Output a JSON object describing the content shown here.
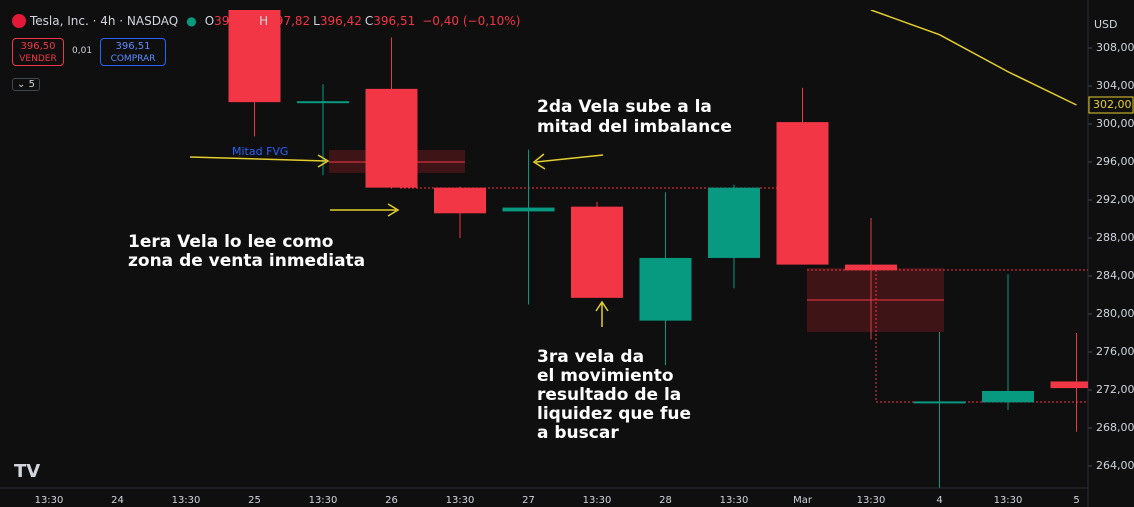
{
  "header": {
    "symbol": "Tesla, Inc. · 4h · NASDAQ",
    "ohlc": [
      {
        "key": "O",
        "value": "396,92"
      },
      {
        "key": "H",
        "value": "397,82"
      },
      {
        "key": "L",
        "value": "396,42"
      },
      {
        "key": "C",
        "value": "396,51"
      }
    ],
    "change": "−0,40 (−0,10%)",
    "sell": {
      "price": "396,50",
      "label": "VENDER"
    },
    "spread": "0,01",
    "buy": {
      "price": "396,51",
      "label": "COMPRAR"
    },
    "lots": "5",
    "currency": "USD"
  },
  "chart_data": {
    "type": "candlestick",
    "categories": [
      "13:30",
      "24",
      "13:30",
      "25",
      "13:30",
      "26",
      "13:30",
      "27",
      "13:30",
      "28",
      "13:30",
      "Mar",
      "13:30",
      "4",
      "13:30",
      "5"
    ],
    "open": [
      null,
      null,
      null,
      312,
      302.3,
      303.7,
      293.3,
      290.8,
      291.3,
      279.3,
      285.9,
      300.2,
      285.2,
      270.6,
      270.7,
      272.9
    ],
    "high": [
      null,
      null,
      null,
      314,
      304.2,
      309.1,
      293.4,
      297.3,
      291.8,
      292.8,
      293.6,
      303.8,
      290.1,
      278.1,
      284.2,
      278
    ],
    "low": [
      null,
      null,
      null,
      298.7,
      294.6,
      293.2,
      288,
      281,
      281.7,
      274.6,
      282.7,
      285.2,
      277.3,
      261.7,
      269.9,
      267.6
    ],
    "close": [
      null,
      null,
      null,
      302.3,
      302.4,
      293.3,
      290.6,
      291.2,
      281.7,
      285.9,
      293.3,
      285.2,
      284.6,
      270.8,
      271.9,
      272.2
    ],
    "up_color": "#089981",
    "down_color": "#f23645",
    "ma": {
      "color": "#e5cf2d",
      "values": [
        null,
        null,
        null,
        null,
        null,
        null,
        null,
        null,
        null,
        null,
        null,
        null,
        312,
        309.4,
        305.5,
        302
      ],
      "value_labels": [
        null,
        null,
        null,
        null,
        null,
        null,
        null,
        null,
        null,
        null,
        null,
        null,
        null,
        null,
        null,
        "302,00"
      ]
    },
    "ylim": [
      262,
      309
    ],
    "yticks": [
      {
        "value": 264,
        "label": "264,00"
      },
      {
        "value": 268,
        "label": "268,00"
      },
      {
        "value": 272,
        "label": "272,00"
      },
      {
        "value": 276,
        "label": "276,00"
      },
      {
        "value": 280,
        "label": "280,00"
      },
      {
        "value": 284,
        "label": "284,00"
      },
      {
        "value": 288,
        "label": "288,00"
      },
      {
        "value": 292,
        "label": "292,00"
      },
      {
        "value": 296,
        "label": "296,00"
      },
      {
        "value": 300,
        "label": "300,00"
      },
      {
        "value": 304,
        "label": "304,00"
      },
      {
        "value": 308,
        "label": "308,00"
      }
    ],
    "annotations": [
      {
        "lines": [
          "Mitad FVG"
        ]
      },
      {
        "lines": [
          "2da Vela sube a la",
          "mitad del imbalance"
        ]
      },
      {
        "lines": [
          "1era Vela lo lee como",
          "zona de venta inmediata"
        ]
      },
      {
        "lines": [
          "3ra vela da",
          "el movimiento",
          "resultado de la",
          "liquidez que fue",
          "a buscar"
        ]
      }
    ]
  }
}
